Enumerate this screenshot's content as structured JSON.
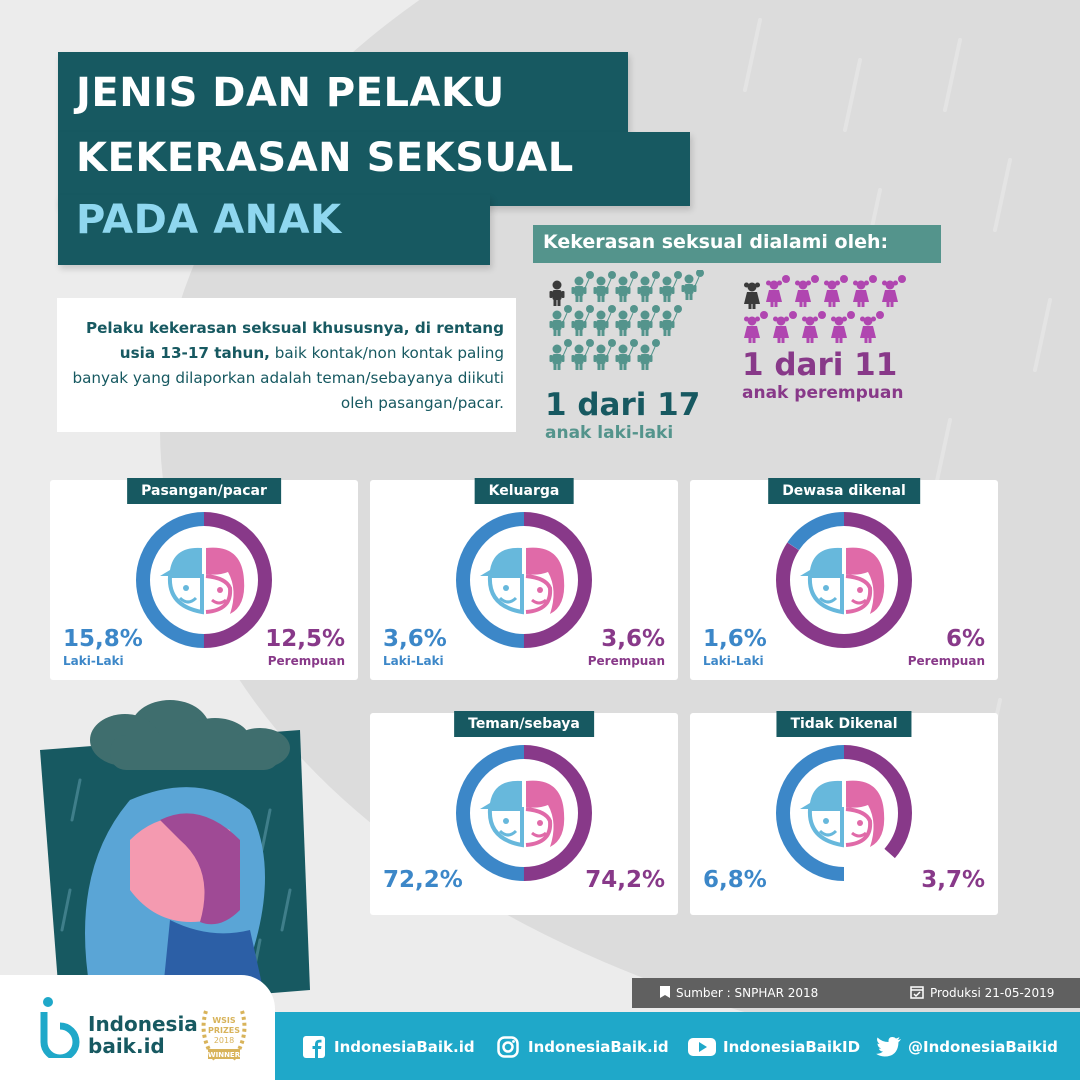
{
  "title": {
    "line1": "JENIS DAN PELAKU",
    "line2": "KEKERASAN SEKSUAL",
    "line3": "PADA ANAK"
  },
  "victims": {
    "heading": "Kekerasan seksual dialami oleh:",
    "boys": {
      "ratio": "1 dari 17",
      "label": "anak laki-laki"
    },
    "girls": {
      "ratio": "1 dari 11",
      "label": "anak perempuan"
    }
  },
  "intro": {
    "bold1": "Pelaku kekerasan seksual khususnya, di rentang usia 13-17 tahun,",
    "rest": " baik kontak/non kontak paling banyak yang dilaporkan adalah teman/sebayanya diikuti oleh pasangan/pacar."
  },
  "cards": [
    {
      "title": "Pasangan/pacar",
      "male": "15,8%",
      "male_label": "Laki-Laki",
      "female": "12,5%",
      "female_label": "Perempuan"
    },
    {
      "title": "Keluarga",
      "male": "3,6%",
      "male_label": "Laki-Laki",
      "female": "3,6%",
      "female_label": "Perempuan"
    },
    {
      "title": "Dewasa dikenal",
      "male": "1,6%",
      "male_label": "Laki-Laki",
      "female": "6%",
      "female_label": "Perempuan"
    },
    {
      "title": "Teman/sebaya",
      "male": "72,2%",
      "female": "74,2%"
    },
    {
      "title": "Tidak Dikenal",
      "male": "6,8%",
      "female": "3,7%"
    }
  ],
  "source": {
    "text": "Sumber : SNPHAR 2018",
    "production": "Produksi 21-05-2019"
  },
  "brand": {
    "name_line1": "Indonesia",
    "name_line2": "baik.id",
    "award_line1": "WSIS",
    "award_line2": "PRIZES",
    "award_line3": "2018",
    "award_line4": "WINNER"
  },
  "social": {
    "facebook": "IndonesiaBaik.id",
    "instagram": "IndonesiaBaik.id",
    "youtube": "IndonesiaBaikID",
    "twitter": "@IndonesiaBaikid"
  },
  "colors": {
    "teal": "#175961",
    "male": "#3c87c8",
    "female": "#883989",
    "footer": "#1fa8c9"
  }
}
